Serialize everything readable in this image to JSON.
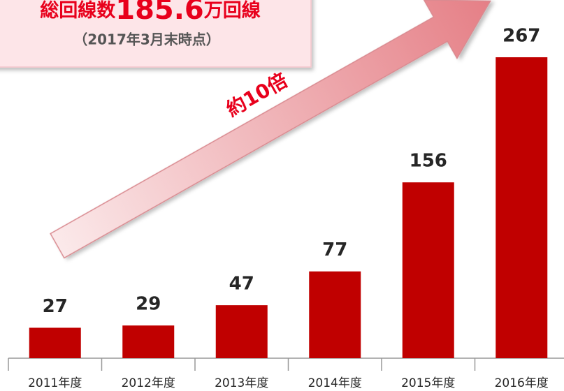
{
  "chart_data": {
    "type": "bar",
    "callout": {
      "label": "総回線数",
      "number": "185.6",
      "unit": "万回線",
      "note": "（2017年3月末時点）"
    },
    "annotation": "約10倍",
    "categories": [
      "2011年度",
      "2012年度",
      "2013年度",
      "2014年度",
      "2015年度",
      "2016年度"
    ],
    "values": [
      27,
      29,
      47,
      77,
      156,
      267
    ],
    "color": "#c00000"
  }
}
